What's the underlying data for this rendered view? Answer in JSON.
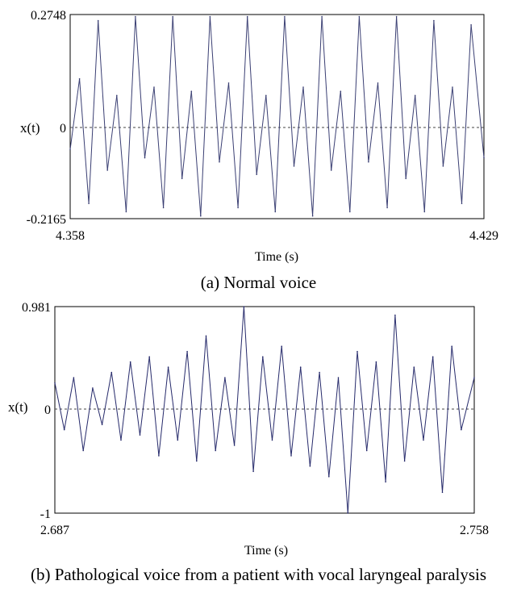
{
  "chart_data": [
    {
      "type": "line",
      "title": "",
      "xlabel": "Time (s)",
      "ylabel": "x(t)",
      "caption": "(a) Normal voice",
      "xlim": [
        4.358,
        4.429
      ],
      "ylim": [
        -0.2165,
        0.2748
      ],
      "x_tick_labels": [
        "4.358",
        "4.429"
      ],
      "y_tick_labels": [
        "0.2748",
        "0",
        "-0.2165"
      ],
      "series": [
        {
          "color": "#3a3f73",
          "x": [
            4.358,
            4.3596,
            4.3612,
            4.3628,
            4.3644,
            4.366,
            4.3676,
            4.3692,
            4.3708,
            4.3724,
            4.374,
            4.3756,
            4.3772,
            4.3788,
            4.3804,
            4.382,
            4.3836,
            4.3852,
            4.3868,
            4.3884,
            4.39,
            4.3916,
            4.3932,
            4.3948,
            4.3964,
            4.398,
            4.3996,
            4.4012,
            4.4028,
            4.4044,
            4.406,
            4.4076,
            4.4092,
            4.4108,
            4.4124,
            4.414,
            4.4156,
            4.4172,
            4.4188,
            4.4204,
            4.422,
            4.4236,
            4.4252,
            4.4268,
            4.429
          ],
          "y": [
            -0.05,
            0.12,
            -0.18,
            0.26,
            -0.1,
            0.08,
            -0.2,
            0.27,
            -0.07,
            0.1,
            -0.19,
            0.27,
            -0.12,
            0.09,
            -0.21,
            0.27,
            -0.08,
            0.11,
            -0.19,
            0.27,
            -0.11,
            0.08,
            -0.2,
            0.27,
            -0.09,
            0.1,
            -0.21,
            0.27,
            -0.1,
            0.09,
            -0.2,
            0.27,
            -0.08,
            0.11,
            -0.19,
            0.27,
            -0.12,
            0.08,
            -0.2,
            0.26,
            -0.09,
            0.1,
            -0.18,
            0.25,
            -0.07
          ]
        }
      ]
    },
    {
      "type": "line",
      "title": "",
      "xlabel": "Time (s)",
      "ylabel": "x(t)",
      "caption": "(b) Pathological voice from a patient with vocal laryngeal paralysis",
      "xlim": [
        2.687,
        2.758
      ],
      "ylim": [
        -1,
        0.981
      ],
      "x_tick_labels": [
        "2.687",
        "2.758"
      ],
      "y_tick_labels": [
        "0.981",
        "0",
        "-1"
      ],
      "series": [
        {
          "color": "#262a6b",
          "x": [
            2.687,
            2.6886,
            2.6902,
            2.6918,
            2.6934,
            2.695,
            2.6966,
            2.6982,
            2.6998,
            2.7014,
            2.703,
            2.7046,
            2.7062,
            2.7078,
            2.7094,
            2.711,
            2.7126,
            2.7142,
            2.7158,
            2.7174,
            2.719,
            2.7206,
            2.7222,
            2.7238,
            2.7254,
            2.727,
            2.7286,
            2.7302,
            2.7318,
            2.7334,
            2.735,
            2.7366,
            2.7382,
            2.7398,
            2.7414,
            2.743,
            2.7446,
            2.7462,
            2.7478,
            2.7494,
            2.751,
            2.7526,
            2.7542,
            2.7558,
            2.758
          ],
          "y": [
            0.25,
            -0.2,
            0.3,
            -0.4,
            0.2,
            -0.15,
            0.35,
            -0.3,
            0.45,
            -0.25,
            0.5,
            -0.45,
            0.4,
            -0.3,
            0.55,
            -0.5,
            0.7,
            -0.4,
            0.3,
            -0.35,
            0.98,
            -0.6,
            0.5,
            -0.3,
            0.6,
            -0.45,
            0.4,
            -0.55,
            0.35,
            -0.65,
            0.3,
            -1.0,
            0.55,
            -0.4,
            0.45,
            -0.7,
            0.9,
            -0.5,
            0.4,
            -0.3,
            0.5,
            -0.8,
            0.6,
            -0.2,
            0.3
          ]
        }
      ]
    }
  ]
}
